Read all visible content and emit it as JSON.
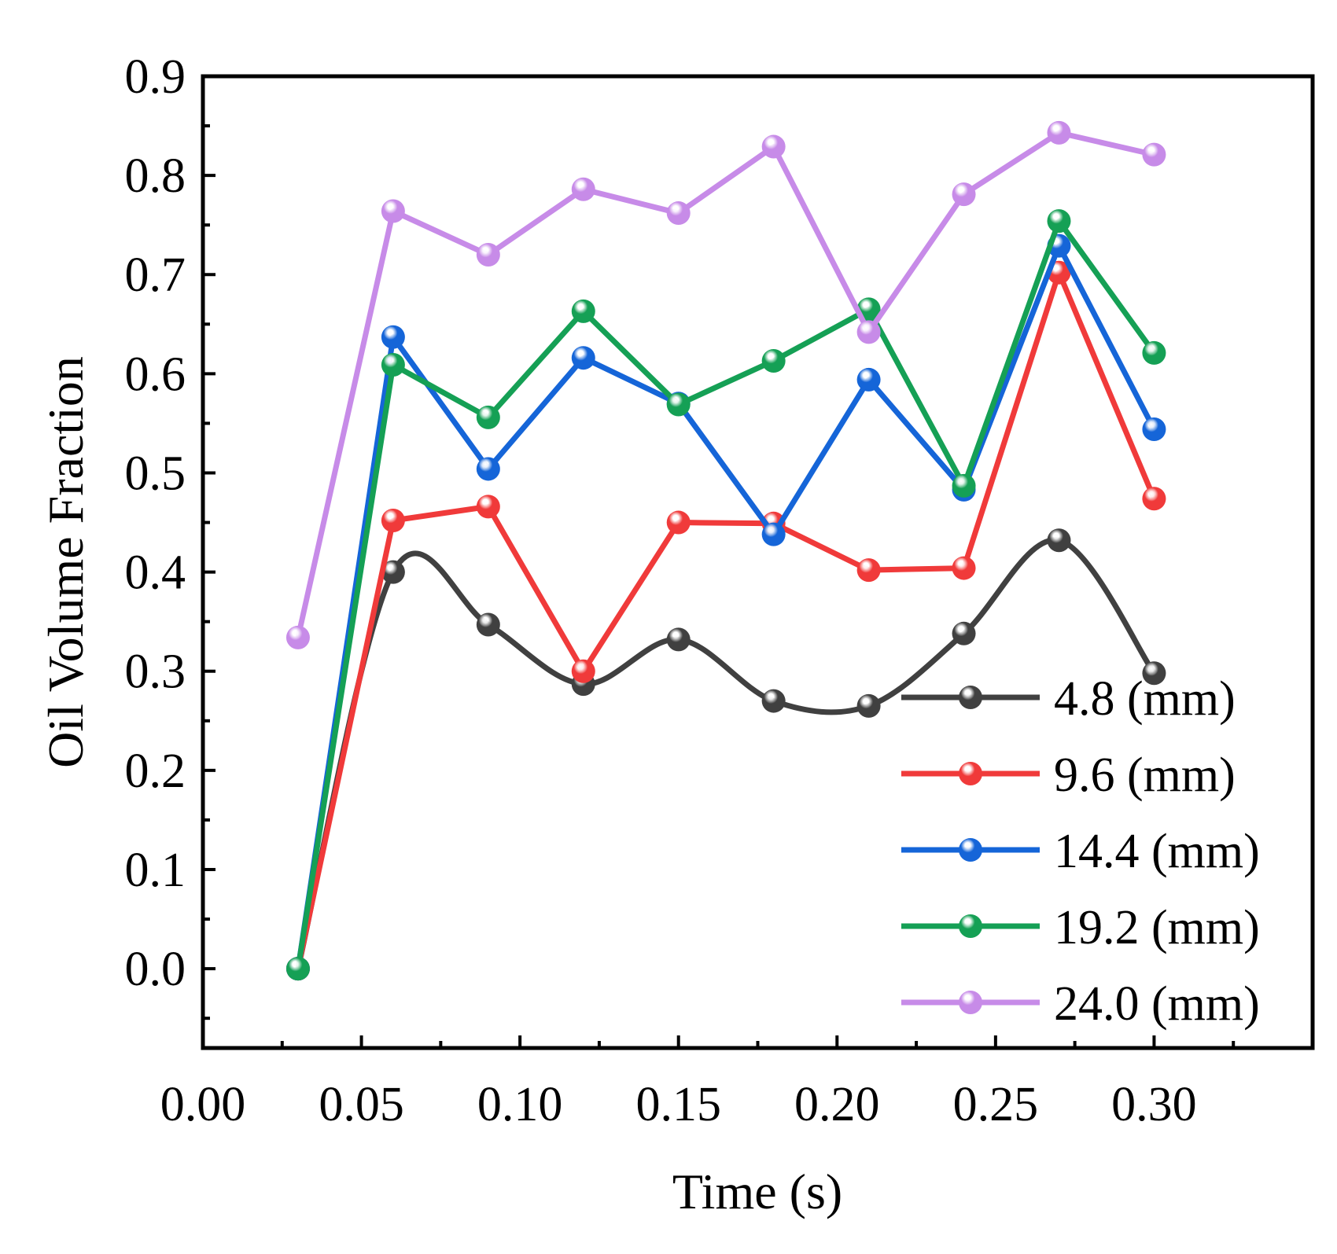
{
  "chart_data": {
    "type": "line",
    "title": "",
    "xlabel": "Time (s)",
    "ylabel": "Oil Volume Fraction",
    "xlim": [
      0.0,
      0.35
    ],
    "ylim": [
      -0.08,
      0.9
    ],
    "x_ticks": [
      0.0,
      0.05,
      0.1,
      0.15,
      0.2,
      0.25,
      0.3
    ],
    "x_tick_labels": [
      "0.00",
      "0.05",
      "0.10",
      "0.15",
      "0.20",
      "0.25",
      "0.30"
    ],
    "y_ticks": [
      0.0,
      0.1,
      0.2,
      0.3,
      0.4,
      0.5,
      0.6,
      0.7,
      0.8,
      0.9
    ],
    "y_tick_labels": [
      "0.0",
      "0.1",
      "0.2",
      "0.3",
      "0.4",
      "0.5",
      "0.6",
      "0.7",
      "0.8",
      "0.9"
    ],
    "grid": false,
    "legend_position": "bottom-right",
    "x": [
      0.03,
      0.06,
      0.09,
      0.12,
      0.15,
      0.18,
      0.21,
      0.24,
      0.27,
      0.3
    ],
    "series": [
      {
        "name": "4.8 (mm)",
        "color": "#404040",
        "smooth": true,
        "values": [
          0.0,
          0.4,
          0.347,
          0.287,
          0.332,
          0.27,
          0.265,
          0.338,
          0.432,
          0.298
        ]
      },
      {
        "name": "9.6 (mm)",
        "color": "#f03a3a",
        "smooth": false,
        "values": [
          0.0,
          0.452,
          0.466,
          0.3,
          0.45,
          0.449,
          0.402,
          0.404,
          0.702,
          0.474
        ]
      },
      {
        "name": "14.4 (mm)",
        "color": "#1565d8",
        "smooth": false,
        "values": [
          0.0,
          0.637,
          0.504,
          0.616,
          0.57,
          0.438,
          0.594,
          0.483,
          0.729,
          0.544
        ]
      },
      {
        "name": "19.2 (mm)",
        "color": "#15a055",
        "smooth": false,
        "values": [
          0.0,
          0.609,
          0.556,
          0.663,
          0.569,
          0.613,
          0.665,
          0.487,
          0.754,
          0.621
        ]
      },
      {
        "name": "24.0 (mm)",
        "color": "#c78be8",
        "smooth": false,
        "values": [
          0.334,
          0.764,
          0.72,
          0.786,
          0.762,
          0.829,
          0.642,
          0.781,
          0.843,
          0.821
        ]
      }
    ]
  }
}
